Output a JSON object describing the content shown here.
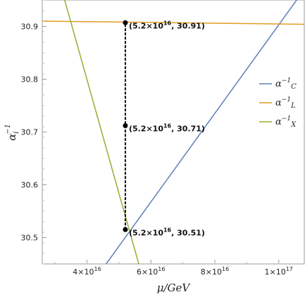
{
  "chart_data": {
    "type": "line",
    "xlabel": "μ/GeV",
    "ylabel": "α",
    "ylabel_sub": "i",
    "ylabel_sup": "−1",
    "xlim": [
      2.6e+16,
      1.08e+17
    ],
    "ylim": [
      30.45,
      30.95
    ],
    "grid": false,
    "legend_position": "right",
    "x_ticks": [
      {
        "value": 4e+16,
        "mantissa": "4",
        "exponent": "16"
      },
      {
        "value": 6e+16,
        "mantissa": "6",
        "exponent": "16"
      },
      {
        "value": 8e+16,
        "mantissa": "8",
        "exponent": "16"
      },
      {
        "value": 1e+17,
        "mantissa": "1",
        "exponent": "17"
      }
    ],
    "y_ticks": [
      {
        "value": 30.5,
        "label": "30.5"
      },
      {
        "value": 30.6,
        "label": "30.6"
      },
      {
        "value": 30.7,
        "label": "30.7"
      },
      {
        "value": 30.8,
        "label": "30.8"
      },
      {
        "value": 30.9,
        "label": "30.9"
      }
    ],
    "series": [
      {
        "name_base": "α",
        "name_sup": "−1",
        "name_sub": "C",
        "color": "#5e81b5",
        "x": [
          4.6e+16,
          1.08e+17
        ],
        "y": [
          30.45,
          30.97
        ]
      },
      {
        "name_base": "α",
        "name_sup": "−1",
        "name_sub": "L",
        "color": "#e19c24",
        "x": [
          2.6e+16,
          1.08e+17
        ],
        "y": [
          30.91,
          30.904
        ]
      },
      {
        "name_base": "α",
        "name_sup": "−1",
        "name_sub": "X",
        "color": "#8fb032",
        "x": [
          3.3e+16,
          5.62e+16
        ],
        "y": [
          30.95,
          30.45
        ]
      }
    ],
    "vertical_line": {
      "x": 5.2e+16,
      "y_from": 30.515,
      "y_to": 30.907,
      "style": "dashed",
      "color": "#000000"
    },
    "points": [
      {
        "x": 5.2e+16,
        "y": 30.907,
        "label_mantissa": "5.2",
        "label_exponent": "16",
        "label_value": "30.91"
      },
      {
        "x": 5.2e+16,
        "y": 30.712,
        "label_mantissa": "5.2",
        "label_exponent": "16",
        "label_value": "30.71"
      },
      {
        "x": 5.2e+16,
        "y": 30.515,
        "label_mantissa": "5.2",
        "label_exponent": "16",
        "label_value": "30.51"
      }
    ]
  }
}
